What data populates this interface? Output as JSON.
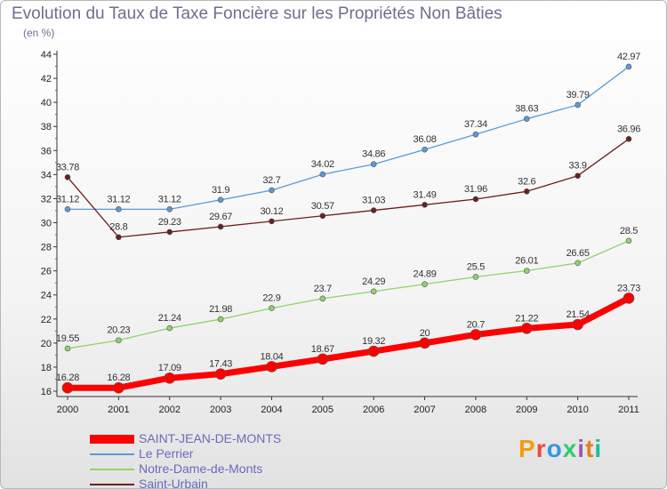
{
  "header": {
    "title": "Evolution du Taux de Taxe Foncière sur les Propriétés Non Bâties",
    "unit": "(en %)"
  },
  "brand": {
    "text": "Proxiti",
    "colors": [
      "#f39c12",
      "#e74c3c",
      "#3498db",
      "#2ecc71",
      "#9b59b6",
      "#e67e22",
      "#1abc9c"
    ]
  },
  "chart_data": {
    "type": "line",
    "title": "Evolution du Taux de Taxe Foncière sur les Propriétés Non Bâties",
    "ylabel": "(en %)",
    "xlabel": "",
    "ylim": [
      16,
      44
    ],
    "yticks": [
      16,
      18,
      20,
      22,
      24,
      26,
      28,
      30,
      32,
      34,
      36,
      38,
      40,
      42,
      44
    ],
    "grid": false,
    "legend_position": "bottom-left",
    "x": [
      "2000",
      "2001",
      "2002",
      "2003",
      "2004",
      "2005",
      "2006",
      "2007",
      "2008",
      "2009",
      "2010",
      "2011"
    ],
    "series": [
      {
        "name": "Le Perrier",
        "color": "#5a9ad6",
        "values": [
          31.12,
          31.12,
          31.12,
          31.9,
          32.7,
          34.02,
          34.86,
          36.08,
          37.34,
          38.63,
          39.79,
          42.97
        ],
        "labels": [
          "31.12",
          "31.12",
          "31.12",
          "31.9",
          "32.7",
          "34.02",
          "34.86",
          "36.08",
          "37.34",
          "38.63",
          "39.79",
          "42.97"
        ]
      },
      {
        "name": "Saint-Urbain",
        "color": "#6b1f1f",
        "values": [
          33.78,
          28.8,
          29.23,
          29.67,
          30.12,
          30.57,
          31.03,
          31.49,
          31.96,
          32.6,
          33.9,
          36.96
        ],
        "labels": [
          "33.78",
          "28.8",
          "29.23",
          "29.67",
          "30.12",
          "30.57",
          "31.03",
          "31.49",
          "31.96",
          "32.6",
          "33.9",
          "36.96"
        ]
      },
      {
        "name": "Notre-Dame-de-Monts",
        "color": "#8ed36a",
        "values": [
          19.55,
          20.23,
          21.24,
          21.98,
          22.9,
          23.7,
          24.29,
          24.89,
          25.5,
          26.01,
          26.65,
          28.5
        ],
        "labels": [
          "19.55",
          "20.23",
          "21.24",
          "21.98",
          "22.9",
          "23.7",
          "24.29",
          "24.89",
          "25.5",
          "26.01",
          "26.65",
          "28.5"
        ]
      },
      {
        "name": "SAINT-JEAN-DE-MONTS",
        "color": "#ff0000",
        "values": [
          16.28,
          16.28,
          17.09,
          17.43,
          18.04,
          18.67,
          19.32,
          20,
          20.7,
          21.22,
          21.54,
          23.73
        ],
        "labels": [
          "16.28",
          "16.28",
          "17.09",
          "17.43",
          "18.04",
          "18.67",
          "19.32",
          "20",
          "20.7",
          "21.22",
          "21.54",
          "23.73"
        ]
      }
    ],
    "legend_order": [
      "SAINT-JEAN-DE-MONTS",
      "Le Perrier",
      "Notre-Dame-de-Monts",
      "Saint-Urbain"
    ]
  }
}
